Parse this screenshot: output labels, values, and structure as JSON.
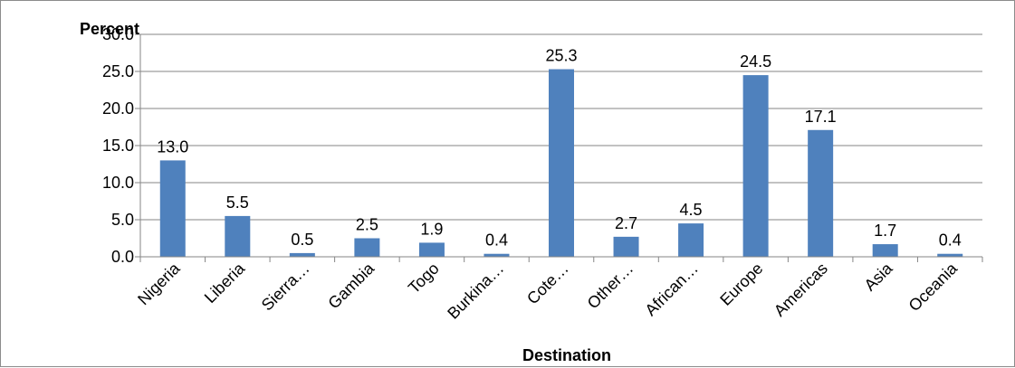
{
  "chart_data": {
    "type": "bar",
    "title": "",
    "xlabel": "Destination",
    "ylabel": "Percent",
    "categories": [
      "Nigeria",
      "Liberia",
      "Sierra…",
      "Gambia",
      "Togo",
      "Burkina…",
      "Cote…",
      "Other…",
      "African…",
      "Europe",
      "Americas",
      "Asia",
      "Oceania"
    ],
    "values": [
      13.0,
      5.5,
      0.5,
      2.5,
      1.9,
      0.4,
      25.3,
      2.7,
      4.5,
      24.5,
      17.1,
      1.7,
      0.4
    ],
    "data_labels": [
      "13.0",
      "5.5",
      "0.5",
      "2.5",
      "1.9",
      "0.4",
      "25.3",
      "2.7",
      "4.5",
      "24.5",
      "17.1",
      "1.7",
      "0.4"
    ],
    "ylim": [
      0,
      30
    ],
    "yticks": [
      "0.0",
      "5.0",
      "10.0",
      "15.0",
      "20.0",
      "25.0",
      "30.0"
    ],
    "grid": true,
    "legend": "none",
    "bar_color": "#4f81bd",
    "grid_color": "#868686"
  }
}
